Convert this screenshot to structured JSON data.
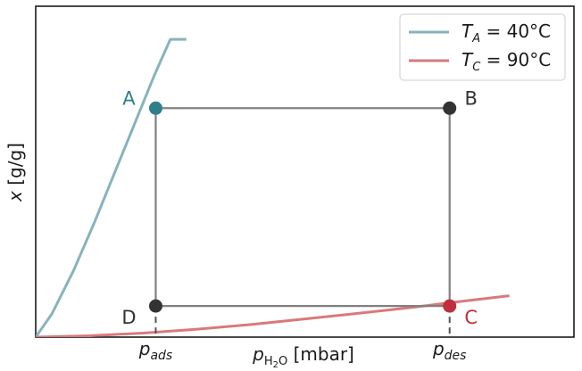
{
  "chart_data": {
    "type": "line",
    "xlabel": "p_H2O [mbar]",
    "ylabel": "x [g/g]",
    "x_ticks": [
      "p_ads",
      "p_des"
    ],
    "xlim": [
      0,
      1
    ],
    "ylim": [
      0,
      1
    ],
    "grid": false,
    "legend_position": "top-right",
    "series": [
      {
        "name": "T_A = 40°C",
        "color": "#87b3bb",
        "x": [
          0.0,
          0.03,
          0.07,
          0.11,
          0.15,
          0.19,
          0.22,
          0.25,
          0.28
        ],
        "y": [
          0.0,
          0.07,
          0.2,
          0.35,
          0.51,
          0.67,
          0.79,
          0.9,
          0.9
        ]
      },
      {
        "name": "T_C = 90°C",
        "color": "#d9797b",
        "x": [
          0.0,
          0.1,
          0.2,
          0.3,
          0.4,
          0.5,
          0.6,
          0.7,
          0.8,
          0.88
        ],
        "y": [
          0.0,
          0.004,
          0.012,
          0.024,
          0.038,
          0.055,
          0.072,
          0.09,
          0.11,
          0.125
        ]
      }
    ],
    "points": [
      {
        "label": "A",
        "x": 0.223,
        "y": 0.692,
        "color": "#2e7f8a"
      },
      {
        "label": "B",
        "x": 0.769,
        "y": 0.692,
        "color": "#333333"
      },
      {
        "label": "C",
        "x": 0.769,
        "y": 0.094,
        "color": "#c0303a"
      },
      {
        "label": "D",
        "x": 0.223,
        "y": 0.094,
        "color": "#333333"
      }
    ],
    "cycle_color": "#808080"
  }
}
